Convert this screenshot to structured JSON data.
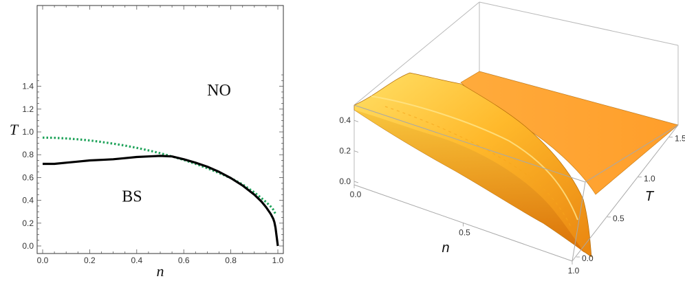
{
  "chart_data": [
    {
      "type": "line",
      "xlabel": "n",
      "ylabel": "T",
      "xlim": [
        0,
        1
      ],
      "ylim": [
        0,
        1.55
      ],
      "xticks": [
        "0.0",
        "0.2",
        "0.4",
        "0.6",
        "0.8",
        "1.0"
      ],
      "yticks": [
        "0.0",
        "0.2",
        "0.4",
        "0.6",
        "0.8",
        "1.0",
        "1.2",
        "1.4"
      ],
      "regions": [
        {
          "label": "NO",
          "x": 0.75,
          "y": 1.32
        },
        {
          "label": "BS",
          "x": 0.38,
          "y": 0.39
        }
      ],
      "series": [
        {
          "style": "solid",
          "color": "#000000",
          "x": [
            0.0,
            0.05,
            0.1,
            0.15,
            0.2,
            0.25,
            0.3,
            0.35,
            0.4,
            0.45,
            0.5,
            0.55,
            0.6,
            0.65,
            0.7,
            0.75,
            0.8,
            0.85,
            0.9,
            0.93,
            0.95,
            0.97,
            0.98,
            0.985,
            0.99,
            0.995,
            1.0
          ],
          "y": [
            0.72,
            0.72,
            0.73,
            0.74,
            0.75,
            0.755,
            0.76,
            0.77,
            0.78,
            0.785,
            0.79,
            0.785,
            0.76,
            0.73,
            0.695,
            0.65,
            0.595,
            0.53,
            0.45,
            0.39,
            0.34,
            0.28,
            0.24,
            0.21,
            0.16,
            0.08,
            0.0
          ]
        },
        {
          "style": "dotted",
          "color": "#1fa35a",
          "x": [
            0.0,
            0.05,
            0.1,
            0.15,
            0.2,
            0.25,
            0.3,
            0.35,
            0.4,
            0.45,
            0.5,
            0.55,
            0.6,
            0.65,
            0.7,
            0.75,
            0.8,
            0.85,
            0.9,
            0.93,
            0.95,
            0.97,
            0.98,
            0.99
          ],
          "y": [
            0.95,
            0.948,
            0.943,
            0.935,
            0.925,
            0.912,
            0.897,
            0.88,
            0.86,
            0.838,
            0.813,
            0.785,
            0.754,
            0.72,
            0.682,
            0.64,
            0.595,
            0.54,
            0.47,
            0.42,
            0.385,
            0.345,
            0.32,
            0.28
          ]
        }
      ]
    },
    {
      "type": "surface3d",
      "xlabel": "n",
      "ylabel": "T",
      "xlim": [
        0,
        1
      ],
      "ylim": [
        0,
        1.6
      ],
      "zlim": [
        0,
        0.45
      ],
      "xticks": [
        "0.0",
        "0.5",
        "1.0"
      ],
      "yticks": [
        "0.0",
        "0.5",
        "1.0",
        "1.5"
      ],
      "zticks": [
        "0.0",
        "0.2",
        "0.4"
      ],
      "colors": {
        "surface_light": "#ffd54a",
        "surface_mid": "#ffae1f",
        "surface_dark": "#e27a08",
        "plane": "#ffa632"
      }
    }
  ]
}
